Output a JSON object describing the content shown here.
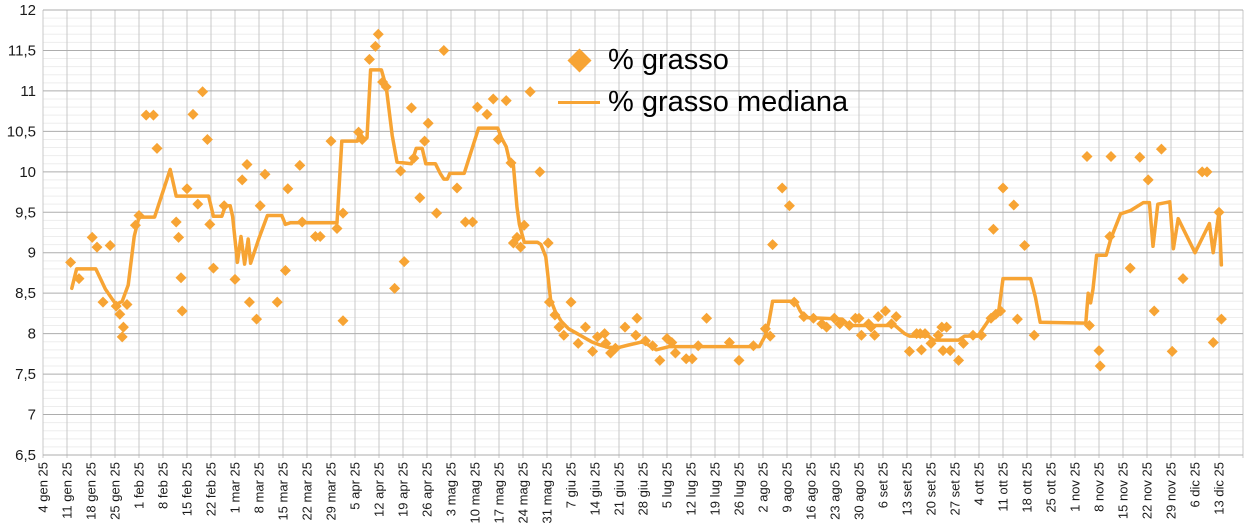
{
  "legend": {
    "series1": "% grasso",
    "series2": "% grasso mediana"
  },
  "colors": {
    "accent": "#F7A434",
    "grid_minor": "#ededed",
    "grid_major": "#adadad",
    "grid_vertical": "#c9c9c9",
    "text": "#1a1a1a",
    "background": "#ffffff"
  },
  "chart_data": {
    "type": "scatter",
    "title": "",
    "xlabel": "",
    "ylabel": "",
    "ylim": [
      6.5,
      12
    ],
    "y_major_step": 0.5,
    "y_minor_step": 0.1,
    "grid": "on",
    "legend_position": "top-center-overlay",
    "y_tick_labels": [
      "12",
      "11,5",
      "11",
      "10,5",
      "10",
      "9,5",
      "9",
      "8,5",
      "8",
      "7,5",
      "7",
      "6,5"
    ],
    "x_tick_labels": [
      "4 gen 25",
      "11 gen 25",
      "18 gen 25",
      "25 gen 25",
      "1 feb 25",
      "8 feb 25",
      "15 feb 25",
      "22 feb 25",
      "1 mar 25",
      "8 mar 25",
      "15 mar 25",
      "22 mar 25",
      "29 mar 25",
      "5 apr 25",
      "12 apr 25",
      "19 apr 25",
      "26 apr 25",
      "3 mag 25",
      "10 mag 25",
      "17 mag 25",
      "24 mag 25",
      "31 mag 25",
      "7 giu 25",
      "14 giu 25",
      "21 giu 25",
      "28 giu 25",
      "5 lug 25",
      "12 lug 25",
      "19 lug 25",
      "26 lug 25",
      "2 ago 25",
      "9 ago 25",
      "16 ago 25",
      "23 ago 25",
      "30 ago 25",
      "6 set 25",
      "13 set 25",
      "20 set 25",
      "27 set 25",
      "4 ott 25",
      "11 ott 25",
      "18 ott 25",
      "25 ott 25",
      "1 nov 25",
      "8 nov 25",
      "15 nov 25",
      "22 nov 25",
      "29 nov 25",
      "6 dic 25",
      "13 dic 25"
    ],
    "series": [
      {
        "name": "% grasso",
        "kind": "scatter-diamond",
        "points": [
          [
            1.15,
            8.88
          ],
          [
            1.5,
            8.68
          ],
          [
            2.05,
            9.19
          ],
          [
            2.25,
            9.07
          ],
          [
            2.5,
            8.39
          ],
          [
            2.8,
            9.09
          ],
          [
            3.05,
            8.34
          ],
          [
            3.2,
            8.24
          ],
          [
            3.3,
            7.96
          ],
          [
            3.35,
            8.08
          ],
          [
            3.5,
            8.36
          ],
          [
            3.85,
            9.34
          ],
          [
            4.0,
            9.46
          ],
          [
            4.3,
            10.7
          ],
          [
            4.6,
            10.7
          ],
          [
            4.75,
            10.29
          ],
          [
            5.55,
            9.38
          ],
          [
            5.65,
            9.19
          ],
          [
            5.75,
            8.69
          ],
          [
            5.8,
            8.28
          ],
          [
            6.0,
            9.79
          ],
          [
            6.25,
            10.71
          ],
          [
            6.45,
            9.6
          ],
          [
            6.65,
            10.99
          ],
          [
            6.85,
            10.4
          ],
          [
            6.95,
            9.35
          ],
          [
            7.1,
            8.81
          ],
          [
            7.55,
            9.58
          ],
          [
            8.0,
            8.67
          ],
          [
            8.3,
            9.9
          ],
          [
            8.5,
            10.09
          ],
          [
            8.6,
            8.39
          ],
          [
            8.9,
            8.18
          ],
          [
            9.05,
            9.58
          ],
          [
            9.25,
            9.97
          ],
          [
            9.76,
            8.39
          ],
          [
            10.1,
            8.78
          ],
          [
            10.2,
            9.79
          ],
          [
            10.7,
            10.08
          ],
          [
            10.8,
            9.38
          ],
          [
            11.35,
            9.2
          ],
          [
            11.55,
            9.2
          ],
          [
            12.0,
            10.38
          ],
          [
            12.25,
            9.3
          ],
          [
            12.5,
            9.49
          ],
          [
            12.5,
            8.16
          ],
          [
            13.15,
            10.49
          ],
          [
            13.3,
            10.4
          ],
          [
            13.6,
            11.39
          ],
          [
            13.85,
            11.55
          ],
          [
            13.97,
            11.7
          ],
          [
            14.15,
            11.11
          ],
          [
            14.3,
            11.05
          ],
          [
            14.65,
            8.56
          ],
          [
            14.9,
            10.01
          ],
          [
            15.05,
            8.89
          ],
          [
            15.35,
            10.79
          ],
          [
            15.45,
            10.17
          ],
          [
            15.7,
            9.68
          ],
          [
            15.9,
            10.38
          ],
          [
            16.05,
            10.6
          ],
          [
            16.4,
            9.49
          ],
          [
            16.7,
            11.5
          ],
          [
            17.25,
            9.8
          ],
          [
            17.6,
            9.38
          ],
          [
            17.9,
            9.38
          ],
          [
            18.1,
            10.8
          ],
          [
            18.5,
            10.71
          ],
          [
            18.76,
            10.9
          ],
          [
            18.97,
            10.4
          ],
          [
            19.3,
            10.88
          ],
          [
            19.5,
            10.11
          ],
          [
            19.6,
            9.12
          ],
          [
            19.75,
            9.19
          ],
          [
            19.9,
            9.07
          ],
          [
            20.05,
            9.34
          ],
          [
            20.3,
            10.99
          ],
          [
            20.7,
            10.0
          ],
          [
            21.05,
            9.12
          ],
          [
            21.1,
            8.39
          ],
          [
            21.33,
            8.23
          ],
          [
            21.5,
            8.08
          ],
          [
            21.7,
            7.98
          ],
          [
            22.0,
            8.39
          ],
          [
            22.3,
            7.88
          ],
          [
            22.6,
            8.08
          ],
          [
            22.9,
            7.78
          ],
          [
            23.1,
            7.96
          ],
          [
            23.4,
            8.0
          ],
          [
            23.45,
            7.88
          ],
          [
            23.65,
            7.76
          ],
          [
            23.85,
            7.82
          ],
          [
            24.25,
            8.08
          ],
          [
            24.7,
            7.98
          ],
          [
            24.75,
            8.19
          ],
          [
            25.1,
            7.91
          ],
          [
            25.4,
            7.85
          ],
          [
            25.7,
            7.67
          ],
          [
            26.0,
            7.94
          ],
          [
            26.2,
            7.89
          ],
          [
            26.35,
            7.76
          ],
          [
            26.8,
            7.69
          ],
          [
            27.05,
            7.69
          ],
          [
            27.3,
            7.85
          ],
          [
            27.65,
            8.19
          ],
          [
            28.6,
            7.89
          ],
          [
            29.0,
            7.67
          ],
          [
            29.6,
            7.85
          ],
          [
            30.1,
            8.06
          ],
          [
            30.3,
            7.97
          ],
          [
            30.4,
            9.1
          ],
          [
            30.8,
            9.8
          ],
          [
            31.1,
            9.58
          ],
          [
            31.3,
            8.39
          ],
          [
            31.7,
            8.21
          ],
          [
            32.1,
            8.19
          ],
          [
            32.45,
            8.12
          ],
          [
            32.65,
            8.08
          ],
          [
            32.97,
            8.19
          ],
          [
            33.2,
            8.12
          ],
          [
            33.6,
            8.1
          ],
          [
            33.85,
            8.19
          ],
          [
            34.0,
            8.19
          ],
          [
            34.1,
            7.98
          ],
          [
            34.4,
            8.12
          ],
          [
            34.5,
            8.08
          ],
          [
            34.65,
            7.98
          ],
          [
            34.8,
            8.21
          ],
          [
            35.1,
            8.28
          ],
          [
            35.35,
            8.12
          ],
          [
            35.55,
            8.21
          ],
          [
            36.1,
            7.78
          ],
          [
            36.4,
            8.0
          ],
          [
            36.55,
            8.0
          ],
          [
            36.6,
            7.8
          ],
          [
            36.75,
            8.0
          ],
          [
            37.0,
            7.88
          ],
          [
            37.3,
            7.98
          ],
          [
            37.45,
            8.08
          ],
          [
            37.5,
            7.79
          ],
          [
            37.65,
            8.08
          ],
          [
            37.8,
            7.79
          ],
          [
            38.15,
            7.67
          ],
          [
            38.35,
            7.88
          ],
          [
            38.75,
            7.98
          ],
          [
            39.1,
            7.98
          ],
          [
            39.5,
            8.19
          ],
          [
            39.6,
            9.29
          ],
          [
            39.7,
            8.24
          ],
          [
            39.9,
            8.28
          ],
          [
            40.0,
            9.8
          ],
          [
            40.45,
            9.59
          ],
          [
            40.6,
            8.18
          ],
          [
            40.9,
            9.09
          ],
          [
            41.3,
            7.98
          ],
          [
            43.5,
            10.19
          ],
          [
            43.6,
            8.1
          ],
          [
            44.0,
            7.79
          ],
          [
            44.05,
            7.6
          ],
          [
            44.45,
            9.2
          ],
          [
            44.5,
            10.19
          ],
          [
            45.3,
            8.81
          ],
          [
            45.7,
            10.18
          ],
          [
            46.05,
            9.9
          ],
          [
            46.3,
            8.28
          ],
          [
            46.6,
            10.28
          ],
          [
            47.05,
            7.78
          ],
          [
            47.5,
            8.68
          ],
          [
            48.3,
            10.0
          ],
          [
            48.5,
            10.0
          ],
          [
            48.76,
            7.89
          ],
          [
            49.0,
            9.5
          ],
          [
            49.1,
            8.18
          ]
        ]
      },
      {
        "name": "% grasso mediana",
        "kind": "line",
        "points": [
          [
            1.2,
            8.56
          ],
          [
            1.4,
            8.8
          ],
          [
            2.2,
            8.8
          ],
          [
            2.6,
            8.55
          ],
          [
            2.9,
            8.42
          ],
          [
            3.05,
            8.36
          ],
          [
            3.3,
            8.4
          ],
          [
            3.55,
            8.6
          ],
          [
            3.8,
            9.2
          ],
          [
            4.0,
            9.44
          ],
          [
            4.65,
            9.44
          ],
          [
            5.3,
            10.03
          ],
          [
            5.55,
            9.7
          ],
          [
            6.9,
            9.7
          ],
          [
            7.1,
            9.45
          ],
          [
            7.45,
            9.45
          ],
          [
            7.6,
            9.58
          ],
          [
            7.8,
            9.58
          ],
          [
            7.9,
            9.45
          ],
          [
            8.1,
            8.88
          ],
          [
            8.25,
            9.2
          ],
          [
            8.4,
            8.86
          ],
          [
            8.55,
            9.17
          ],
          [
            8.65,
            8.87
          ],
          [
            9.0,
            9.18
          ],
          [
            9.35,
            9.46
          ],
          [
            9.95,
            9.46
          ],
          [
            10.1,
            9.35
          ],
          [
            10.3,
            9.37
          ],
          [
            12.25,
            9.37
          ],
          [
            12.45,
            10.38
          ],
          [
            13.1,
            10.38
          ],
          [
            13.2,
            10.49
          ],
          [
            13.35,
            10.4
          ],
          [
            13.5,
            10.42
          ],
          [
            13.65,
            11.26
          ],
          [
            14.1,
            11.26
          ],
          [
            14.3,
            11.05
          ],
          [
            14.55,
            10.45
          ],
          [
            14.75,
            10.12
          ],
          [
            15.35,
            10.1
          ],
          [
            15.55,
            10.29
          ],
          [
            15.8,
            10.29
          ],
          [
            15.95,
            10.1
          ],
          [
            16.35,
            10.1
          ],
          [
            16.55,
            9.98
          ],
          [
            16.7,
            9.91
          ],
          [
            16.85,
            9.91
          ],
          [
            16.95,
            9.98
          ],
          [
            17.55,
            9.98
          ],
          [
            18.15,
            10.54
          ],
          [
            18.95,
            10.54
          ],
          [
            19.1,
            10.42
          ],
          [
            19.3,
            10.31
          ],
          [
            19.45,
            10.12
          ],
          [
            19.6,
            10.08
          ],
          [
            19.75,
            9.56
          ],
          [
            19.85,
            9.35
          ],
          [
            20.05,
            9.13
          ],
          [
            20.6,
            9.13
          ],
          [
            20.75,
            9.1
          ],
          [
            20.95,
            8.95
          ],
          [
            21.15,
            8.42
          ],
          [
            21.35,
            8.27
          ],
          [
            21.6,
            8.15
          ],
          [
            21.9,
            8.06
          ],
          [
            22.2,
            8.01
          ],
          [
            22.5,
            7.96
          ],
          [
            22.85,
            7.9
          ],
          [
            23.2,
            7.86
          ],
          [
            23.55,
            7.83
          ],
          [
            24.0,
            7.83
          ],
          [
            24.4,
            7.86
          ],
          [
            25.0,
            7.9
          ],
          [
            25.55,
            7.8
          ],
          [
            26.1,
            7.84
          ],
          [
            29.85,
            7.84
          ],
          [
            30.1,
            7.98
          ],
          [
            30.25,
            8.15
          ],
          [
            30.4,
            8.4
          ],
          [
            31.35,
            8.4
          ],
          [
            31.55,
            8.28
          ],
          [
            31.75,
            8.2
          ],
          [
            33.3,
            8.18
          ],
          [
            33.6,
            8.1
          ],
          [
            35.5,
            8.1
          ],
          [
            35.9,
            8.0
          ],
          [
            36.1,
            7.97
          ],
          [
            36.9,
            7.97
          ],
          [
            37.1,
            7.92
          ],
          [
            38.15,
            7.92
          ],
          [
            38.4,
            7.97
          ],
          [
            38.95,
            7.97
          ],
          [
            39.3,
            8.12
          ],
          [
            39.5,
            8.21
          ],
          [
            39.8,
            8.23
          ],
          [
            40.0,
            8.68
          ],
          [
            41.15,
            8.68
          ],
          [
            41.35,
            8.45
          ],
          [
            41.55,
            8.14
          ],
          [
            43.45,
            8.13
          ],
          [
            43.55,
            8.5
          ],
          [
            43.65,
            8.38
          ],
          [
            43.75,
            8.55
          ],
          [
            43.9,
            8.97
          ],
          [
            44.3,
            8.97
          ],
          [
            44.5,
            9.18
          ],
          [
            44.9,
            9.48
          ],
          [
            45.3,
            9.52
          ],
          [
            45.85,
            9.62
          ],
          [
            46.1,
            9.62
          ],
          [
            46.25,
            9.08
          ],
          [
            46.45,
            9.6
          ],
          [
            46.95,
            9.63
          ],
          [
            47.1,
            9.05
          ],
          [
            47.3,
            9.42
          ],
          [
            48.0,
            9.0
          ],
          [
            48.6,
            9.36
          ],
          [
            48.76,
            9.0
          ],
          [
            49.0,
            9.5
          ],
          [
            49.1,
            8.85
          ]
        ]
      }
    ]
  }
}
